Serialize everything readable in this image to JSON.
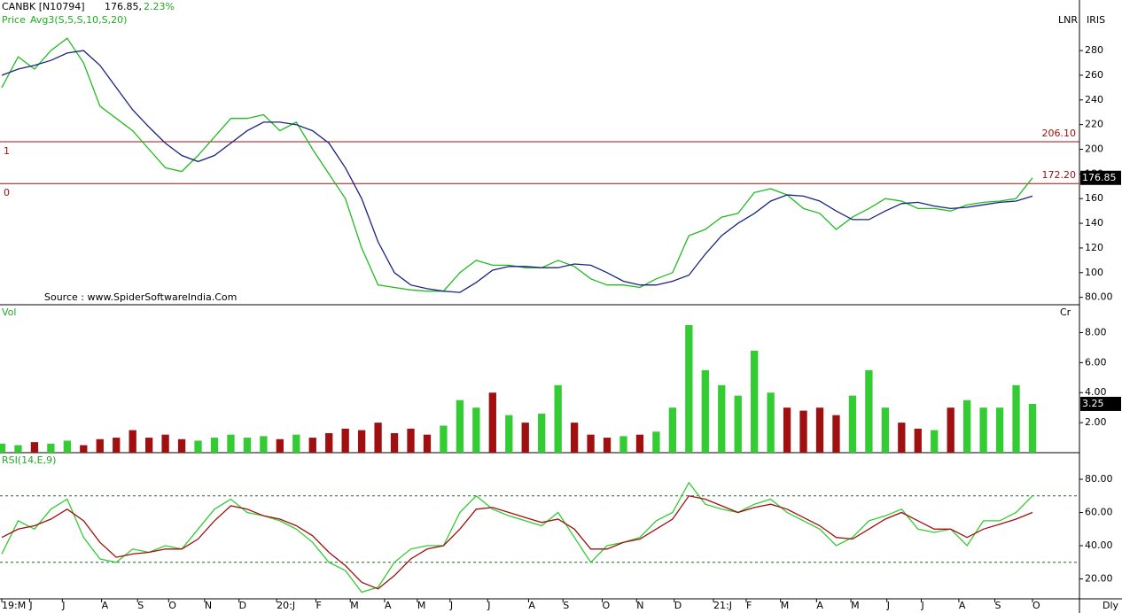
{
  "chart_data": [
    {
      "type": "line",
      "title": "CANBK [N10794]",
      "last_text": "176.85,",
      "change_text": "2.23%",
      "subtitle_name": "Price",
      "subtitle_avg": "Avg3(S,5,S,10,S,20)",
      "corner_left": "LNR",
      "corner_right": "IRIS",
      "source": "Source : www.SpiderSoftwareIndia.Com",
      "series": [
        {
          "name": "Price",
          "color": "#22bb22",
          "values": [
            250,
            275,
            265,
            280,
            290,
            270,
            235,
            225,
            215,
            200,
            185,
            182,
            195,
            210,
            225,
            225,
            228,
            215,
            222,
            200,
            180,
            160,
            120,
            90,
            88,
            86,
            85,
            85,
            100,
            110,
            106,
            106,
            104,
            104,
            110,
            105,
            95,
            90,
            90,
            88,
            95,
            100,
            130,
            135,
            145,
            148,
            165,
            168,
            163,
            152,
            148,
            135,
            145,
            152,
            160,
            158,
            152,
            152,
            150,
            155,
            157,
            158,
            160,
            176.85
          ]
        },
        {
          "name": "Avg3",
          "color": "#1a237e",
          "values": [
            260,
            265,
            268,
            272,
            278,
            280,
            268,
            250,
            232,
            218,
            205,
            195,
            190,
            195,
            205,
            215,
            222,
            222,
            220,
            215,
            205,
            185,
            160,
            125,
            100,
            90,
            87,
            85,
            84,
            92,
            102,
            105,
            105,
            104,
            104,
            107,
            106,
            100,
            93,
            90,
            90,
            93,
            98,
            115,
            130,
            140,
            148,
            158,
            163,
            162,
            158,
            150,
            143,
            143,
            150,
            156,
            157,
            154,
            152,
            153,
            155,
            157,
            158,
            162
          ]
        }
      ],
      "levels": [
        {
          "value": 206.1,
          "label": "206.10",
          "tag": "1"
        },
        {
          "value": 172.2,
          "label": "172.20",
          "tag": "0"
        }
      ],
      "level_color": "#a01010",
      "ylim": [
        74,
        321
      ],
      "yticks": [
        {
          "value": 80,
          "label": "80.00"
        },
        100,
        120,
        140,
        160,
        180,
        200,
        220,
        240,
        260,
        280
      ]
    },
    {
      "type": "bar",
      "title": "Vol",
      "unit": "Cr",
      "up_color": "#33cc33",
      "down_color": "#a01010",
      "values": [
        0.6,
        0.5,
        0.7,
        0.6,
        0.8,
        0.5,
        0.9,
        1.0,
        1.5,
        1.0,
        1.2,
        0.9,
        0.8,
        1.0,
        1.2,
        1.0,
        1.1,
        0.9,
        1.2,
        1.0,
        1.3,
        1.6,
        1.5,
        2.0,
        1.3,
        1.6,
        1.2,
        1.8,
        3.5,
        3.0,
        4.0,
        2.5,
        2.0,
        2.6,
        4.5,
        2.0,
        1.2,
        1.0,
        1.1,
        1.2,
        1.4,
        3.0,
        8.5,
        5.5,
        4.5,
        3.8,
        6.8,
        4.0,
        3.0,
        2.8,
        3.0,
        2.5,
        3.8,
        5.5,
        3.0,
        2.0,
        1.6,
        1.5,
        3.0,
        3.5,
        3.0,
        3.0,
        4.5,
        3.25
      ],
      "ylim": [
        0,
        9.8
      ],
      "yticks": [
        {
          "value": 2,
          "label": "2.00"
        },
        {
          "value": 4,
          "label": "4.00"
        },
        {
          "value": 6,
          "label": "6.00"
        },
        {
          "value": 8,
          "label": "8.00"
        }
      ]
    },
    {
      "type": "line",
      "title": "RSI(14,E,9)",
      "x_end": "Dly",
      "series": [
        {
          "name": "RSI",
          "color": "#33cc33",
          "values": [
            35,
            55,
            50,
            62,
            68,
            45,
            32,
            30,
            38,
            36,
            40,
            38,
            50,
            62,
            68,
            60,
            58,
            55,
            50,
            42,
            30,
            25,
            12,
            15,
            30,
            38,
            40,
            40,
            60,
            70,
            62,
            58,
            55,
            52,
            60,
            45,
            30,
            40,
            42,
            45,
            55,
            60,
            78,
            65,
            62,
            60,
            65,
            68,
            60,
            55,
            50,
            40,
            45,
            55,
            58,
            62,
            50,
            48,
            50,
            40,
            55,
            55,
            60,
            70
          ]
        },
        {
          "name": "Signal",
          "color": "#a01010",
          "values": [
            45,
            50,
            52,
            56,
            62,
            55,
            42,
            33,
            35,
            36,
            38,
            38,
            44,
            55,
            64,
            62,
            58,
            56,
            52,
            46,
            36,
            28,
            18,
            14,
            22,
            32,
            38,
            40,
            50,
            62,
            63,
            60,
            57,
            54,
            56,
            50,
            38,
            38,
            42,
            44,
            50,
            56,
            70,
            68,
            64,
            60,
            63,
            65,
            62,
            57,
            52,
            45,
            44,
            50,
            56,
            60,
            55,
            50,
            50,
            45,
            50,
            53,
            56,
            60
          ]
        }
      ],
      "bands": [
        70,
        30
      ],
      "ylim": [
        8,
        95.5
      ],
      "yticks": [
        {
          "value": 20,
          "label": "20.00"
        },
        {
          "value": 40,
          "label": "40.00"
        },
        {
          "value": 60,
          "label": "60.00"
        },
        {
          "value": 80,
          "label": "80.00"
        }
      ],
      "xticks": [
        {
          "value": 0,
          "label": "19:M"
        },
        {
          "value": 1.7,
          "label": "J"
        },
        {
          "value": 3.7,
          "label": "J"
        },
        {
          "value": 6.1,
          "label": "A"
        },
        {
          "value": 8.3,
          "label": "S"
        },
        {
          "value": 10.2,
          "label": "O"
        },
        {
          "value": 12.4,
          "label": "N"
        },
        {
          "value": 14.5,
          "label": "D"
        },
        {
          "value": 16.8,
          "label": "20:J"
        },
        {
          "value": 19.2,
          "label": "F"
        },
        {
          "value": 21.3,
          "label": "M"
        },
        {
          "value": 23.4,
          "label": "A"
        },
        {
          "value": 25.4,
          "label": "M"
        },
        {
          "value": 27.4,
          "label": "J"
        },
        {
          "value": 29.7,
          "label": "J"
        },
        {
          "value": 32.2,
          "label": "A"
        },
        {
          "value": 34.3,
          "label": "S"
        },
        {
          "value": 36.7,
          "label": "O"
        },
        {
          "value": 38.8,
          "label": "N"
        },
        {
          "value": 41.1,
          "label": "D"
        },
        {
          "value": 43.5,
          "label": "21:J"
        },
        {
          "value": 45.5,
          "label": "F"
        },
        {
          "value": 47.6,
          "label": "M"
        },
        {
          "value": 49.8,
          "label": "A"
        },
        {
          "value": 51.9,
          "label": "M"
        },
        {
          "value": 54.1,
          "label": "J"
        },
        {
          "value": 56.2,
          "label": "J"
        },
        {
          "value": 58.5,
          "label": "A"
        },
        {
          "value": 60.7,
          "label": "S"
        },
        {
          "value": 63,
          "label": "O"
        }
      ]
    }
  ]
}
